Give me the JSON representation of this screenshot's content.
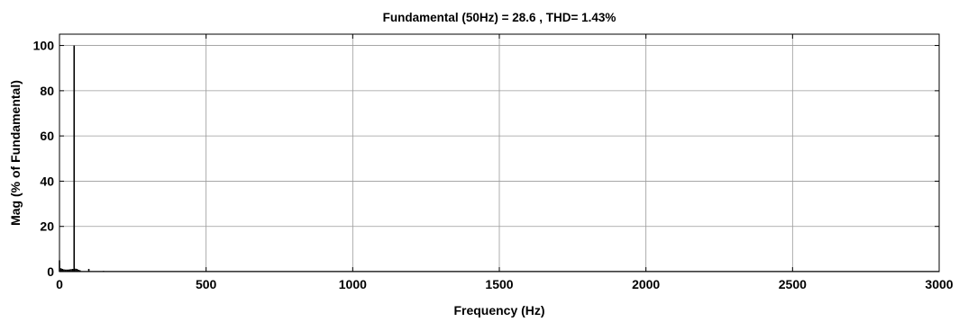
{
  "chart_data": {
    "type": "bar",
    "title": "Fundamental (50Hz) = 28.6 , THD= 1.43%",
    "xlabel": "Frequency (Hz)",
    "ylabel": "Mag (% of Fundamental)",
    "xlim": [
      0,
      3000
    ],
    "ylim": [
      0,
      105
    ],
    "xticks": [
      0,
      500,
      1000,
      1500,
      2000,
      2500,
      3000
    ],
    "yticks": [
      0,
      20,
      40,
      60,
      80,
      100
    ],
    "grid": true,
    "bar_color": "#000000",
    "x": [
      0,
      5,
      10,
      15,
      20,
      25,
      30,
      35,
      40,
      45,
      50,
      55,
      60,
      65,
      70,
      100,
      150
    ],
    "values": [
      5,
      1.5,
      1.2,
      1.0,
      0.9,
      0.9,
      0.9,
      1.0,
      1.1,
      1.2,
      100,
      1.3,
      1.2,
      0.8,
      0.6,
      1.2,
      0.3
    ],
    "baseline_level": 0.3
  }
}
